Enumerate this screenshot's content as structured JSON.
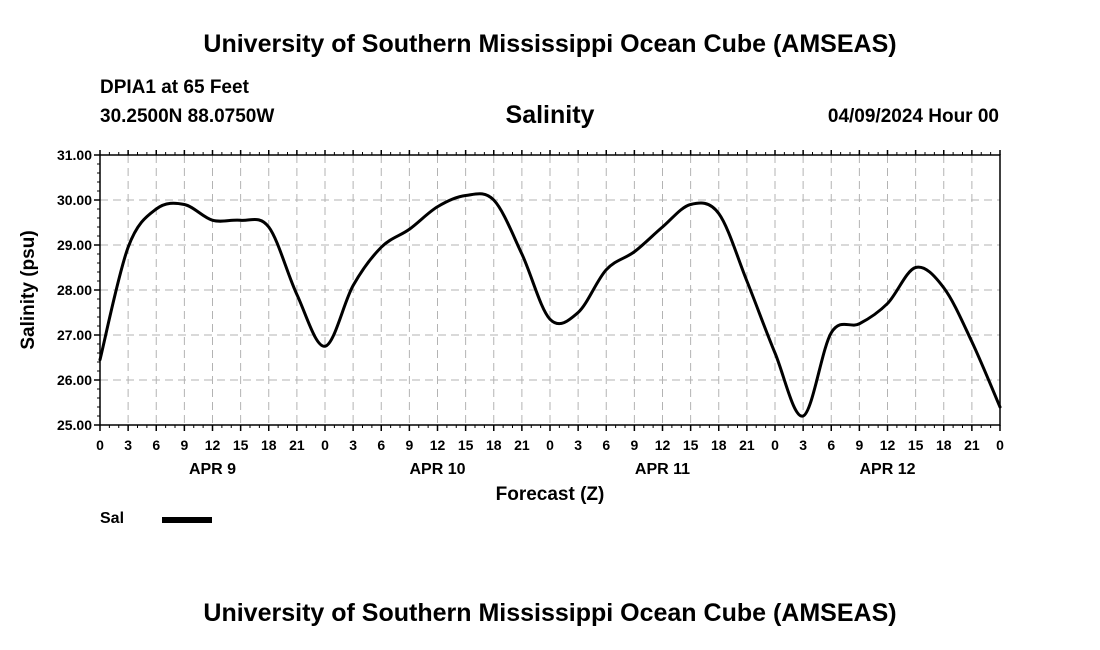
{
  "header": {
    "title": "University of Southern Mississippi Ocean Cube (AMSEAS)",
    "station": "DPIA1 at 65 Feet",
    "coordinates": "30.2500N  88.0750W",
    "chart_title": "Salinity",
    "datetime": "04/09/2024 Hour 00"
  },
  "footer": {
    "title": "University of Southern Mississippi Ocean Cube (AMSEAS)"
  },
  "legend": {
    "label": "Sal",
    "color": "#000000"
  },
  "chart_data": {
    "type": "line",
    "title": "Salinity",
    "xlabel": "Forecast (Z)",
    "ylabel": "Salinity (psu)",
    "ylim": [
      25.0,
      31.0
    ],
    "xlim": [
      0,
      96
    ],
    "grid": true,
    "y_ticks": [
      "25.00",
      "26.00",
      "27.00",
      "28.00",
      "29.00",
      "30.00",
      "31.00"
    ],
    "x_tick_labels": [
      "0",
      "3",
      "6",
      "9",
      "12",
      "15",
      "18",
      "21",
      "0",
      "3",
      "6",
      "9",
      "12",
      "15",
      "18",
      "21",
      "0",
      "3",
      "6",
      "9",
      "12",
      "15",
      "18",
      "21",
      "0",
      "3",
      "6",
      "9",
      "12",
      "15",
      "18",
      "21",
      "0"
    ],
    "day_labels": [
      {
        "label": "APR 9",
        "hour": 12
      },
      {
        "label": "APR 10",
        "hour": 36
      },
      {
        "label": "APR 11",
        "hour": 60
      },
      {
        "label": "APR 12",
        "hour": 84
      }
    ],
    "series": [
      {
        "name": "Sal",
        "x": [
          0,
          3,
          6,
          9,
          12,
          15,
          18,
          21,
          24,
          27,
          30,
          33,
          36,
          39,
          42,
          45,
          48,
          51,
          54,
          57,
          60,
          63,
          66,
          69,
          72,
          75,
          78,
          81,
          84,
          87,
          90,
          93,
          96
        ],
        "values": [
          26.45,
          28.95,
          29.8,
          29.9,
          29.55,
          29.55,
          29.4,
          27.9,
          26.75,
          28.1,
          28.95,
          29.35,
          29.85,
          30.1,
          30.0,
          28.8,
          27.35,
          27.5,
          28.45,
          28.85,
          29.4,
          29.9,
          29.7,
          28.2,
          26.6,
          25.2,
          27.05,
          27.25,
          27.7,
          28.5,
          28.05,
          26.85,
          25.4
        ]
      }
    ]
  }
}
